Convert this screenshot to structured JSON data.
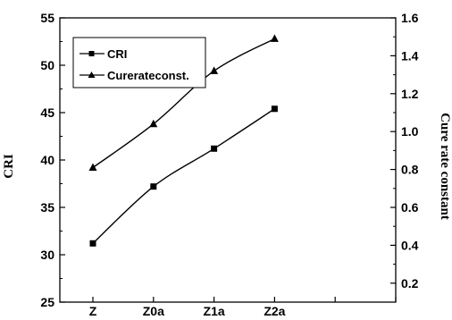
{
  "chart_data": {
    "type": "line",
    "categories": [
      "Z",
      "Z0a",
      "Z1a",
      "Z2a"
    ],
    "x_ticks": [
      "Z",
      "Z0a",
      "Z1a",
      "Z2a",
      "",
      ""
    ],
    "series": [
      {
        "name": "CRI",
        "axis": "left",
        "marker": "square",
        "values": [
          31.2,
          37.2,
          41.2,
          45.4
        ]
      },
      {
        "name": "Curerateconst.",
        "axis": "right",
        "marker": "triangle",
        "values": [
          0.81,
          1.04,
          1.32,
          1.49
        ]
      }
    ],
    "ylabel": "CRI",
    "y2label": "Cure rate constant",
    "ylim": [
      25,
      55
    ],
    "y2lim": [
      0.1,
      1.6
    ],
    "yticks": [
      25,
      30,
      35,
      40,
      45,
      50,
      55
    ],
    "y2ticks": [
      0.2,
      0.4,
      0.6,
      0.8,
      1.0,
      1.2,
      1.4,
      1.6
    ],
    "legend_position": "top-left",
    "grid": false,
    "line_color": "#000000"
  }
}
